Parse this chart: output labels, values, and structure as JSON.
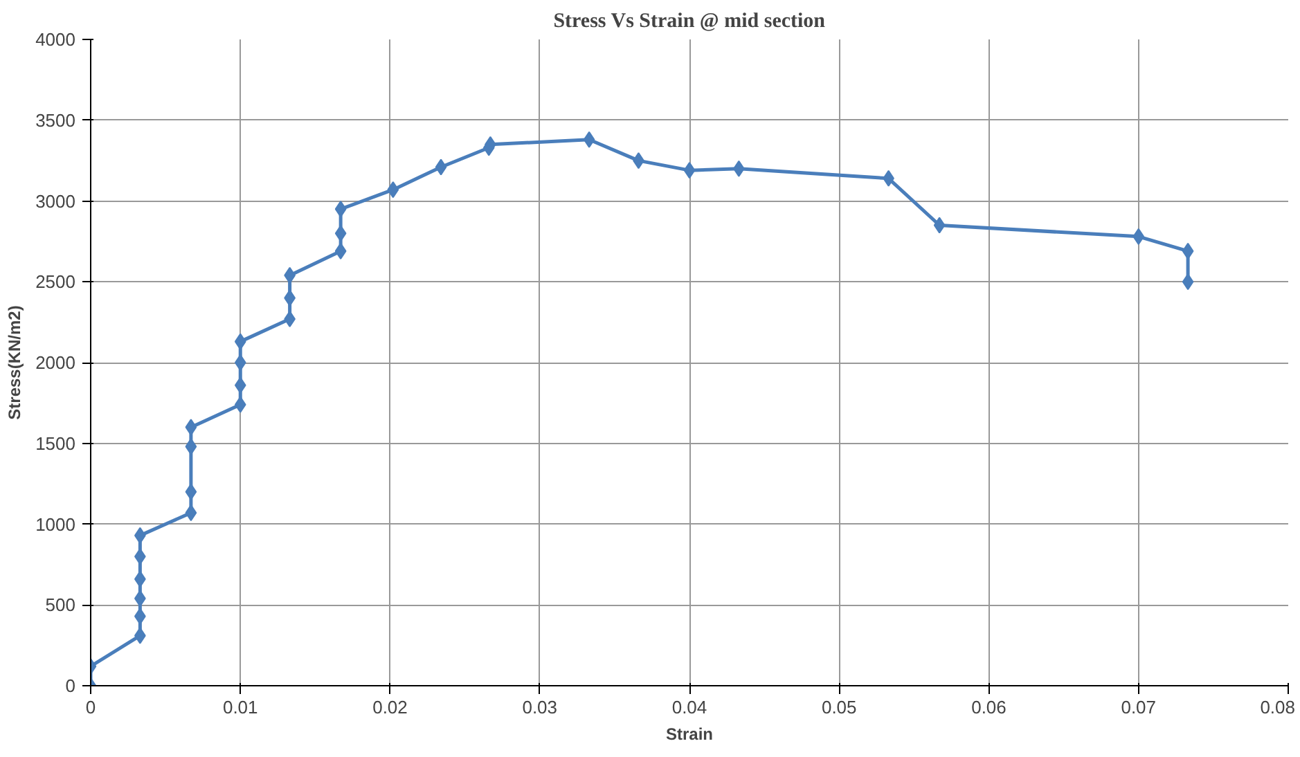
{
  "chart_data": {
    "type": "line",
    "title": "Stress Vs Strain @ mid section",
    "xlabel": "Strain",
    "ylabel": "Stress(KN/m2)",
    "xlim": [
      0,
      0.08
    ],
    "xticks": [
      0,
      0.01,
      0.02,
      0.03,
      0.04,
      0.05,
      0.06,
      0.07,
      0.08
    ],
    "ylim": [
      0,
      4000
    ],
    "yticks": [
      0,
      500,
      1000,
      1500,
      2000,
      2500,
      3000,
      3500,
      4000
    ],
    "grid": true,
    "marker": "diamond",
    "line_style": "solid",
    "series": [
      {
        "color": "#4a7ebb",
        "x": [
          0,
          0,
          0.0033,
          0.0033,
          0.0033,
          0.0033,
          0.0033,
          0.0033,
          0.0067,
          0.0067,
          0.0067,
          0.0067,
          0.01,
          0.01,
          0.01,
          0.01,
          0.0133,
          0.0133,
          0.0133,
          0.0167,
          0.0167,
          0.0167,
          0.0202,
          0.0234,
          0.0266,
          0.0267,
          0.0333,
          0.0366,
          0.04,
          0.0433,
          0.0533,
          0.0567,
          0.07,
          0.0733,
          0.0733
        ],
        "values": [
          0,
          120,
          310,
          430,
          540,
          660,
          800,
          930,
          1070,
          1200,
          1480,
          1600,
          1740,
          1860,
          2000,
          2130,
          2270,
          2400,
          2540,
          2690,
          2800,
          2950,
          3070,
          3210,
          3330,
          3350,
          3380,
          3250,
          3190,
          3200,
          3140,
          2850,
          2780,
          2690,
          2500
        ]
      }
    ]
  }
}
